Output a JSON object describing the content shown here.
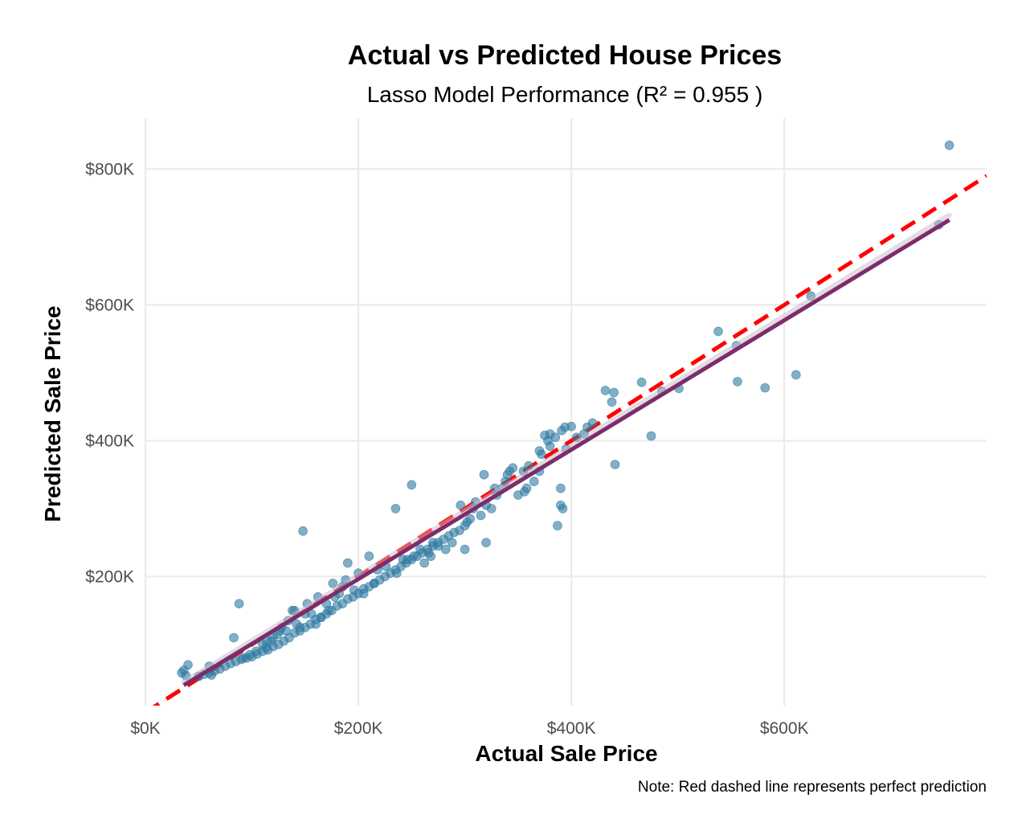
{
  "chart_data": {
    "type": "scatter",
    "title": "Actual vs Predicted House Prices",
    "subtitle": "Lasso Model Performance (R² = 0.955 )",
    "xlabel": "Actual Sale Price",
    "ylabel": "Predicted Sale Price",
    "caption": "Note: Red dashed line represents perfect prediction",
    "xlim": [
      0,
      790000
    ],
    "ylim": [
      10000,
      875000
    ],
    "x_ticks": [
      0,
      200000,
      400000,
      600000
    ],
    "x_tick_labels": [
      "$0K",
      "$200K",
      "$400K",
      "$600K"
    ],
    "y_ticks": [
      200000,
      400000,
      600000,
      800000
    ],
    "y_tick_labels": [
      "$200K",
      "$400K",
      "$600K",
      "$800K"
    ],
    "grid": true,
    "legend": "none",
    "colors": {
      "points": "#2e7aa0",
      "perfect_line": "#ff0000",
      "fit_line": "#7b2d6b",
      "grid": "#ebebeb"
    },
    "series": [
      {
        "x": [
          755000,
          745000,
          625000,
          611000,
          582000,
          556000,
          555000,
          538000,
          501000,
          485000,
          475000,
          466000,
          441000,
          440000,
          438000,
          432000,
          420000,
          415000,
          412000,
          405000,
          400000,
          395000,
          392000,
          390000,
          390000,
          387000,
          380000,
          378000,
          375000,
          372000,
          370000,
          365000,
          360000,
          355000,
          350000,
          345000,
          340000,
          338000,
          335000,
          330000,
          325000,
          320000,
          315000,
          310000,
          305000,
          300000,
          295000,
          290000,
          285000,
          280000,
          275000,
          270000,
          265000,
          260000,
          255000,
          250000,
          245000,
          240000,
          235000,
          230000,
          225000,
          220000,
          215000,
          210000,
          205000,
          200000,
          195000,
          190000,
          185000,
          180000,
          175000,
          170000,
          165000,
          160000,
          155000,
          150000,
          145000,
          140000,
          135000,
          130000,
          125000,
          120000,
          115000,
          110000,
          105000,
          100000,
          95000,
          90000,
          85000,
          80000,
          75000,
          70000,
          65000,
          60000,
          55000,
          50000,
          40000,
          36000,
          34000,
          38000,
          62000,
          60000,
          88000,
          83000,
          148000,
          250000,
          235000,
          318000,
          328000,
          394000,
          391000,
          380000,
          385000,
          342000,
          356000,
          358000,
          370000,
          302000,
          320000,
          300000,
          308000,
          296000,
          236000,
          242000,
          210000,
          205000,
          215000,
          218000,
          226000,
          190000,
          178000,
          185000,
          172000,
          165000,
          160000,
          150000,
          145000,
          140000,
          132000,
          128000,
          124000,
          118000,
          113000,
          110000,
          104000,
          98000,
          92000,
          270000,
          266000,
          262000,
          258000,
          252000,
          246000,
          288000,
          282000,
          275000,
          268000,
          200000,
          196000,
          188000,
          182000,
          176000,
          170000,
          162000,
          156000,
          152000,
          142000,
          138000,
          134000,
          126000,
          120000,
          114000
        ],
        "y": [
          835000,
          718000,
          613000,
          497000,
          478000,
          487000,
          540000,
          561000,
          477000,
          473000,
          407000,
          486000,
          365000,
          471000,
          457000,
          474000,
          426000,
          420000,
          410000,
          405000,
          421000,
          388000,
          300000,
          305000,
          330000,
          275000,
          392000,
          400000,
          408000,
          380000,
          385000,
          340000,
          363000,
          355000,
          320000,
          360000,
          350000,
          340000,
          330000,
          320000,
          300000,
          305000,
          290000,
          310000,
          285000,
          275000,
          268000,
          265000,
          260000,
          255000,
          250000,
          245000,
          240000,
          235000,
          230000,
          225000,
          220000,
          215000,
          210000,
          205000,
          200000,
          195000,
          190000,
          185000,
          182000,
          175000,
          170000,
          167000,
          160000,
          157000,
          150000,
          145000,
          140000,
          137000,
          130000,
          125000,
          120000,
          117000,
          110000,
          105000,
          100000,
          97000,
          92000,
          90000,
          86000,
          82000,
          80000,
          78000,
          75000,
          72000,
          68000,
          64000,
          61000,
          58000,
          56000,
          53000,
          70000,
          62000,
          58000,
          54000,
          55000,
          68000,
          160000,
          110000,
          267000,
          335000,
          300000,
          350000,
          330000,
          420000,
          415000,
          410000,
          405000,
          355000,
          325000,
          330000,
          355000,
          280000,
          250000,
          240000,
          300000,
          305000,
          205000,
          225000,
          230000,
          175000,
          190000,
          210000,
          215000,
          220000,
          170000,
          185000,
          150000,
          140000,
          130000,
          145000,
          125000,
          150000,
          120000,
          125000,
          115000,
          105000,
          95000,
          100000,
          90000,
          85000,
          80000,
          250000,
          235000,
          220000,
          240000,
          230000,
          225000,
          250000,
          240000,
          245000,
          230000,
          205000,
          180000,
          195000,
          175000,
          190000,
          160000,
          170000,
          145000,
          160000,
          130000,
          150000,
          135000,
          120000,
          110000,
          105000
        ]
      }
    ],
    "perfect_line": {
      "x": [
        0,
        790000
      ],
      "y": [
        0,
        790000
      ]
    },
    "fit_line": {
      "x": [
        36000,
        755000
      ],
      "y": [
        40000,
        725000
      ]
    }
  }
}
